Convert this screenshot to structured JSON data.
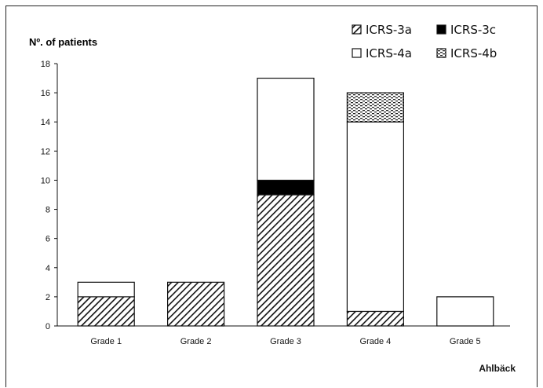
{
  "chart_data": {
    "type": "bar",
    "stacked": true,
    "ylabel": "Nº. of patients",
    "ylim": [
      0,
      18
    ],
    "yticks": [
      0,
      2,
      4,
      6,
      8,
      10,
      12,
      14,
      16,
      18
    ],
    "categories": [
      "Grade 1",
      "Grade 2",
      "Grade 3",
      "Grade 4",
      "Grade 5"
    ],
    "series": [
      {
        "name": "ICRS-3a",
        "values": [
          2,
          3,
          9,
          1,
          0
        ],
        "pattern": "diagonal-hatch"
      },
      {
        "name": "ICRS-3c",
        "values": [
          0,
          0,
          1,
          0,
          0
        ],
        "pattern": "solid-black"
      },
      {
        "name": "ICRS-4a",
        "values": [
          1,
          0,
          7,
          13,
          2
        ],
        "pattern": "white"
      },
      {
        "name": "ICRS-4b",
        "values": [
          0,
          0,
          0,
          2,
          0
        ],
        "pattern": "dotted"
      }
    ],
    "legend_position": "top-right",
    "grid": false
  },
  "credit": "Ahlbäck"
}
